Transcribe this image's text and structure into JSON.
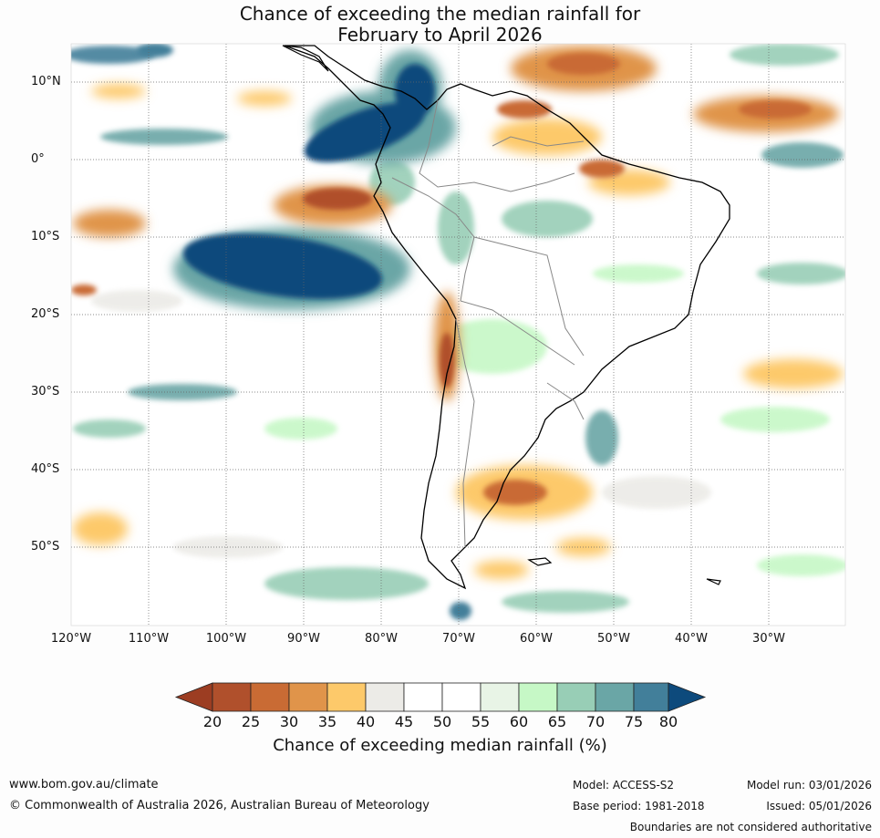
{
  "title": {
    "line1": "Chance of exceeding the median rainfall for",
    "line2": "February to April 2026"
  },
  "map": {
    "lat_labels": [
      "10°N",
      "0°",
      "10°S",
      "20°S",
      "30°S",
      "40°S",
      "50°S"
    ],
    "lon_labels": [
      "120°W",
      "110°W",
      "100°W",
      "90°W",
      "80°W",
      "70°W",
      "60°W",
      "50°W",
      "40°W",
      "30°W"
    ],
    "lat_range": [
      -60,
      15
    ],
    "lon_range": [
      -120,
      -20
    ],
    "anomaly_regions": [
      {
        "name": "tropical-pacific-wet",
        "category": "80+"
      },
      {
        "name": "south-pacific-wet-band",
        "category": "80+"
      },
      {
        "name": "colombia-pacific-wet",
        "category": "80+"
      },
      {
        "name": "peru-coast-dry",
        "category": "25-30"
      },
      {
        "name": "chile-dry",
        "category": "20-25"
      },
      {
        "name": "patagonia-dry",
        "category": "25-30"
      },
      {
        "name": "venezuela-guianas-dry",
        "category": "25-30"
      },
      {
        "name": "atlantic-equatorial-dry",
        "category": "25-30"
      }
    ]
  },
  "colorbar": {
    "ticks": [
      "20",
      "25",
      "30",
      "35",
      "40",
      "45",
      "50",
      "55",
      "60",
      "65",
      "70",
      "75",
      "80"
    ],
    "colors": [
      "#9c3d22",
      "#b0502c",
      "#c96b34",
      "#e0944a",
      "#fdc96a",
      "#ecebe7",
      "#ffffff",
      "#ffffff",
      "#e8f4e6",
      "#c6f8c6",
      "#98ceb6",
      "#6aa6a6",
      "#427f9a",
      "#0d4a7c"
    ],
    "label": "Chance of exceeding median rainfall (%)"
  },
  "footer": {
    "website": "www.bom.gov.au/climate",
    "copyright": "© Commonwealth of Australia 2026, Australian Bureau of Meteorology",
    "model": "Model: ACCESS-S2",
    "base_period": "Base period: 1981-2018",
    "model_run": "Model run: 03/01/2026",
    "issued": "Issued: 05/01/2026",
    "disclaimer": "Boundaries are not considered authoritative"
  }
}
